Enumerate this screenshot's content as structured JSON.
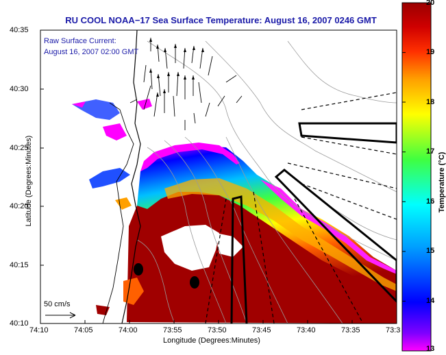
{
  "title": "RU COOL  NOAA−17  Sea Surface Temperature:  August 16, 2007 0246 GMT",
  "legend": {
    "line1": "Raw Surface Current:",
    "line2": "August 16, 2007 02:00 GMT",
    "scale_label": "50 cm/s"
  },
  "axes": {
    "ylabel": "Latitude (Degrees:Minutes)",
    "xlabel": "Longitude (Degrees:Minutes)",
    "yticks": [
      "40:35",
      "40:30",
      "40:25",
      "40:20",
      "40:15",
      "40:10"
    ],
    "xticks": [
      "74:10",
      "74:05",
      "74:00",
      "73:55",
      "73:50",
      "73:45",
      "73:40",
      "73:35",
      "73:3"
    ]
  },
  "colorbar": {
    "label": "Temperature (°C)",
    "ticks": [
      "20",
      "19",
      "18",
      "17",
      "16",
      "15",
      "14",
      "13"
    ],
    "min": 13,
    "max": 20
  },
  "colors": {
    "title": "#1a1aa8",
    "land": "#ffffff",
    "warm_water": "#a00000"
  }
}
